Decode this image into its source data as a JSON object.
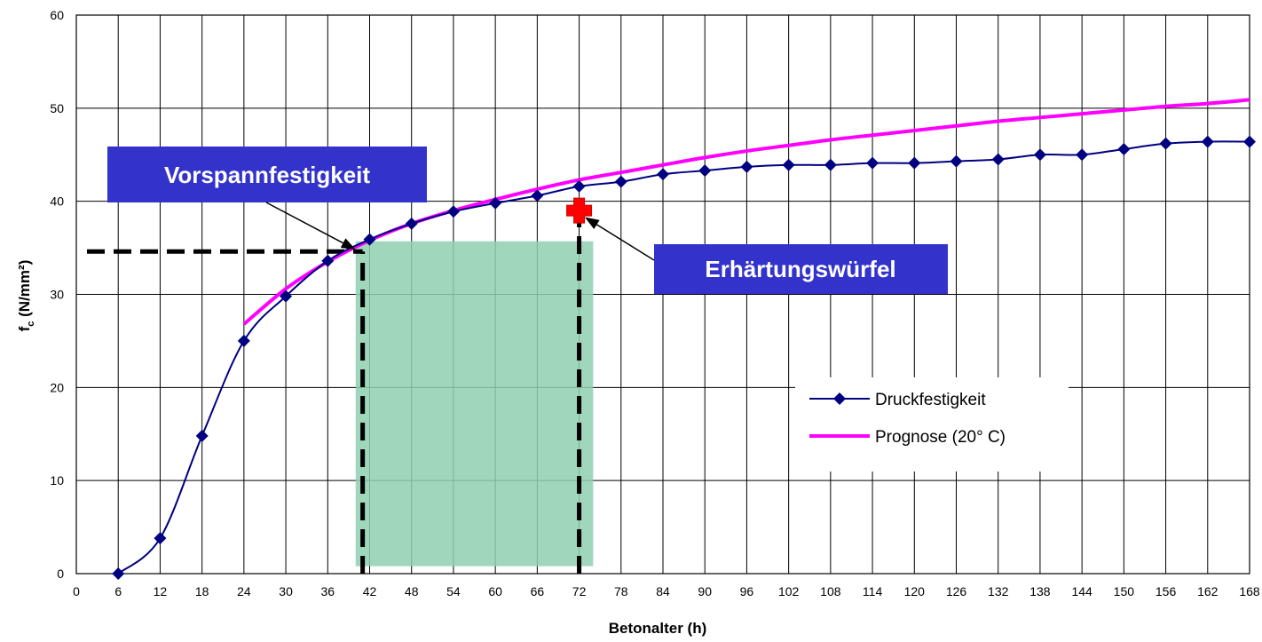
{
  "chart_data": {
    "type": "line",
    "title": "",
    "xlabel": "Betonalter (h)",
    "ylabel_main": "f",
    "ylabel_sub": "c",
    "ylabel_rest": " (N/mm²)",
    "xlim": [
      0,
      168
    ],
    "ylim": [
      0,
      60
    ],
    "x_ticks": [
      0,
      6,
      12,
      18,
      24,
      30,
      36,
      42,
      48,
      54,
      60,
      66,
      72,
      78,
      84,
      90,
      96,
      102,
      108,
      114,
      120,
      126,
      132,
      138,
      144,
      150,
      156,
      162,
      168
    ],
    "y_ticks": [
      0,
      10,
      20,
      30,
      40,
      50,
      60
    ],
    "grid": true,
    "legend_position": "right",
    "series": [
      {
        "name": "Druckfestigkeit",
        "color": "#000080",
        "marker": "diamond",
        "x": [
          6,
          12,
          18,
          24,
          30,
          36,
          42,
          48,
          54,
          60,
          66,
          72,
          78,
          84,
          90,
          96,
          102,
          108,
          114,
          120,
          126,
          132,
          138,
          144,
          150,
          156,
          162,
          168
        ],
        "values": [
          0,
          3.8,
          14.8,
          25,
          29.8,
          33.6,
          35.9,
          37.6,
          38.9,
          39.8,
          40.6,
          41.6,
          42.1,
          42.9,
          43.3,
          43.7,
          43.9,
          43.9,
          44.1,
          44.1,
          44.3,
          44.5,
          45,
          45,
          45.6,
          46.2,
          46.4,
          46.4
        ]
      },
      {
        "name": "Prognose (20° C)",
        "color": "#ff00ff",
        "marker": "none",
        "x": [
          24,
          30,
          36,
          42,
          48,
          54,
          60,
          66,
          72,
          78,
          84,
          90,
          96,
          102,
          108,
          114,
          120,
          126,
          132,
          138,
          144,
          150,
          156,
          162,
          168
        ],
        "values": [
          26.8,
          30.6,
          33.5,
          35.8,
          37.6,
          39,
          40.2,
          41.3,
          42.3,
          43.1,
          43.9,
          44.7,
          45.4,
          46,
          46.6,
          47.1,
          47.6,
          48.1,
          48.6,
          49,
          49.4,
          49.8,
          50.2,
          50.5,
          50.9
        ]
      }
    ],
    "shaded_region": {
      "x": [
        40,
        74
      ],
      "y": [
        0.8,
        35.7
      ],
      "color": "#8fcfb0"
    },
    "reference_lines": {
      "horizontal": {
        "y": 34.6,
        "x_from": 0,
        "x_to": 41
      },
      "vertical": [
        {
          "x": 41,
          "y_from": 0,
          "y_to": 34.6
        },
        {
          "x": 72,
          "y_from": 0,
          "y_to": 39
        }
      ]
    },
    "cube_marker": {
      "x": 72,
      "y": 39,
      "color": "#ff0000"
    },
    "annotations": [
      {
        "text": "Vorspannfestigkeit",
        "target_x": 40,
        "target_y": 34.8,
        "box_color": "#3333cc"
      },
      {
        "text": "Erhärtungswürfel",
        "target_x": 72.8,
        "target_y": 38.3,
        "box_color": "#3333cc"
      }
    ]
  }
}
